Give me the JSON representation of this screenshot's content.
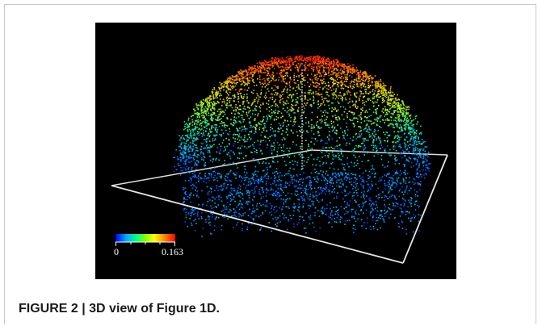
{
  "figure": {
    "caption_label": "FIGURE 2 | ",
    "caption_title": "3D view of Figure 1D."
  },
  "colorbar": {
    "min_label": "0",
    "max_label": "0.163",
    "colors": [
      "#0000ff",
      "#00aaff",
      "#00ff88",
      "#88ff00",
      "#ffff00",
      "#ff8800",
      "#ff0000"
    ]
  }
}
